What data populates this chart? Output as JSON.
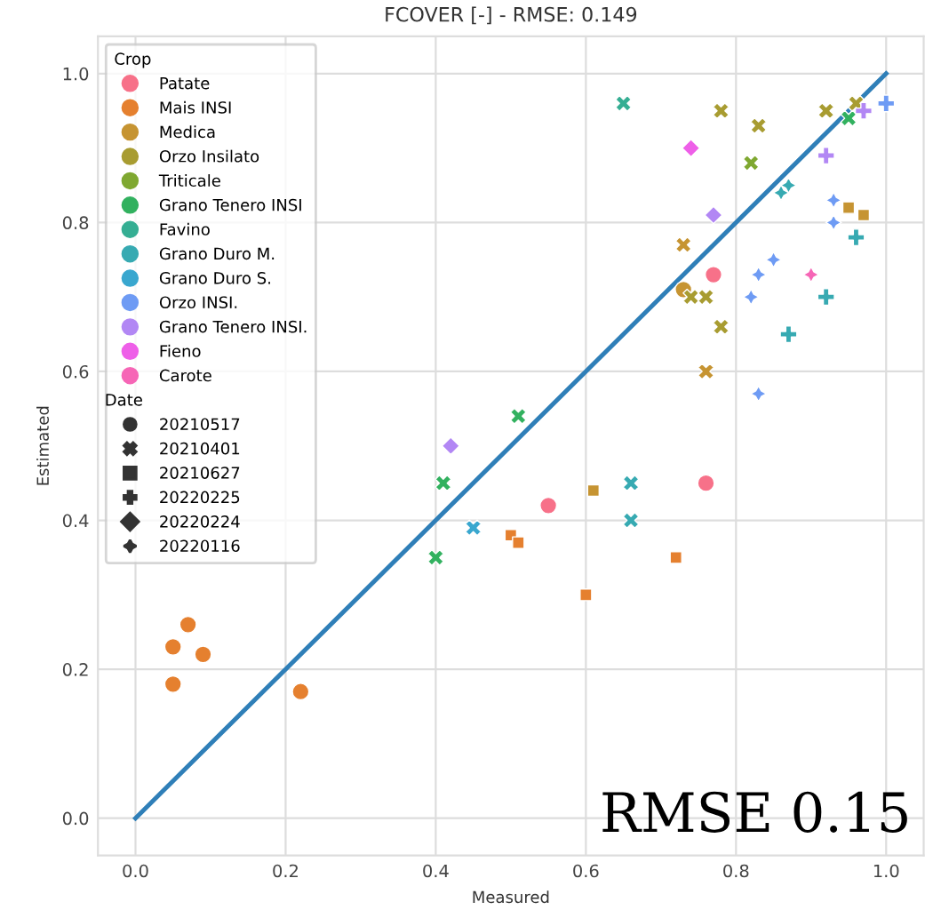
{
  "chart_data": {
    "type": "scatter",
    "title": "FCOVER [-] - RMSE: 0.149",
    "xlabel": "Measured",
    "ylabel": "Estimated",
    "legend_title": "Crop",
    "legend": "top left",
    "grid": true,
    "xlim": [
      -0.05,
      1.05
    ],
    "ylim": [
      -0.05,
      1.05
    ],
    "xticks": [
      {
        "value": 0,
        "label": "0.0"
      },
      0.2,
      0.4,
      0.6,
      0.8,
      {
        "value": 1,
        "label": "1.0"
      }
    ],
    "yticks": [
      {
        "value": 0,
        "label": "0.0"
      },
      0.2,
      0.4,
      0.6,
      0.8,
      {
        "value": 1,
        "label": "1.0"
      }
    ],
    "annotations": [
      "RMSE 0.15"
    ],
    "series": [
      {
        "name": "Patate",
        "color": "#f77189",
        "marker": "circle",
        "x": [
          0.77,
          0.55,
          0.76
        ],
        "values": [
          0.73,
          0.42,
          0.45
        ]
      },
      {
        "name": "Mais INSI",
        "color": "#e5802f",
        "marker": "circle",
        "x": [
          0.05,
          0.05,
          0.07,
          0.09,
          0.22
        ],
        "values": [
          0.18,
          0.23,
          0.26,
          0.22,
          0.17
        ]
      },
      {
        "color": "#e5802f",
        "marker": "square",
        "x": [
          0.5,
          0.51,
          0.6,
          0.72
        ],
        "values": [
          0.38,
          0.37,
          0.3,
          0.35
        ]
      },
      {
        "name": "Medica",
        "color": "#c69432",
        "marker": "circle",
        "x": [
          0.73
        ],
        "values": [
          0.71
        ]
      },
      {
        "color": "#c69432",
        "marker": "square",
        "x": [
          0.95,
          0.97,
          0.61
        ],
        "values": [
          0.82,
          0.81,
          0.44
        ]
      },
      {
        "color": "#c69432",
        "marker": "cross",
        "x": [
          0.73,
          0.76
        ],
        "values": [
          0.77,
          0.6
        ]
      },
      {
        "name": "Orzo Insilato",
        "color": "#a89c31",
        "marker": "cross",
        "x": [
          0.78,
          0.92,
          0.96,
          0.83,
          0.74,
          0.76,
          0.78
        ],
        "values": [
          0.95,
          0.95,
          0.96,
          0.93,
          0.7,
          0.7,
          0.66
        ]
      },
      {
        "name": "Triticale",
        "color": "#7fa831",
        "marker": "cross",
        "x": [
          0.82
        ],
        "values": [
          0.88
        ]
      },
      {
        "name": "Grano Tenero INSI",
        "color": "#32b15f",
        "marker": "cross",
        "x": [
          0.95,
          0.51,
          0.41,
          0.4
        ],
        "values": [
          0.94,
          0.54,
          0.45,
          0.35
        ]
      },
      {
        "name": "Favino",
        "color": "#35ae93",
        "marker": "cross",
        "x": [
          0.65
        ],
        "values": [
          0.96
        ]
      },
      {
        "name": "Grano Duro M.",
        "color": "#37aab2",
        "marker": "cross",
        "x": [
          0.66,
          0.66
        ],
        "values": [
          0.45,
          0.4
        ]
      },
      {
        "color": "#37aab2",
        "marker": "star",
        "x": [
          0.86,
          0.87
        ],
        "values": [
          0.84,
          0.85
        ]
      },
      {
        "color": "#37aab2",
        "marker": "plus",
        "x": [
          0.96,
          0.92,
          0.87
        ],
        "values": [
          0.78,
          0.7,
          0.65
        ]
      },
      {
        "name": "Grano Duro S.",
        "color": "#39a7cf",
        "marker": "cross",
        "x": [
          0.45
        ],
        "values": [
          0.39
        ]
      },
      {
        "name": "Orzo INSI.",
        "color": "#6e9bf4",
        "marker": "plus",
        "x": [
          1.0
        ],
        "values": [
          0.96
        ]
      },
      {
        "color": "#6e9bf4",
        "marker": "star",
        "x": [
          0.93,
          0.93,
          0.85,
          0.83,
          0.82,
          0.83
        ],
        "values": [
          0.83,
          0.8,
          0.75,
          0.73,
          0.7,
          0.57
        ]
      },
      {
        "name": "Grano Tenero INSI.",
        "color": "#b287f4",
        "marker": "plus",
        "x": [
          0.97,
          0.92
        ],
        "values": [
          0.95,
          0.89
        ]
      },
      {
        "color": "#b287f4",
        "marker": "diamond",
        "x": [
          0.77,
          0.42
        ],
        "values": [
          0.81,
          0.5
        ]
      },
      {
        "name": "Fieno",
        "color": "#ee5fe8",
        "marker": "diamond",
        "x": [
          0.74
        ],
        "values": [
          0.9
        ]
      },
      {
        "name": "Carote",
        "color": "#f666b6",
        "marker": "star",
        "x": [
          0.9
        ],
        "values": [
          0.73
        ]
      },
      {
        "name": "Date",
        "marker": "none"
      },
      {
        "name": "20210517",
        "color": "#333333",
        "marker": "circle"
      },
      {
        "name": "20210401",
        "color": "#333333",
        "marker": "cross"
      },
      {
        "name": "20210627",
        "color": "#333333",
        "marker": "square"
      },
      {
        "name": "20220225",
        "color": "#333333",
        "marker": "plus"
      },
      {
        "name": "20220224",
        "color": "#333333",
        "marker": "diamond"
      },
      {
        "name": "20220116",
        "color": "#333333",
        "marker": "star"
      },
      {
        "type": "line",
        "color": "#2f7fb8",
        "x": [
          0,
          1
        ],
        "values": [
          0,
          1
        ]
      }
    ]
  }
}
